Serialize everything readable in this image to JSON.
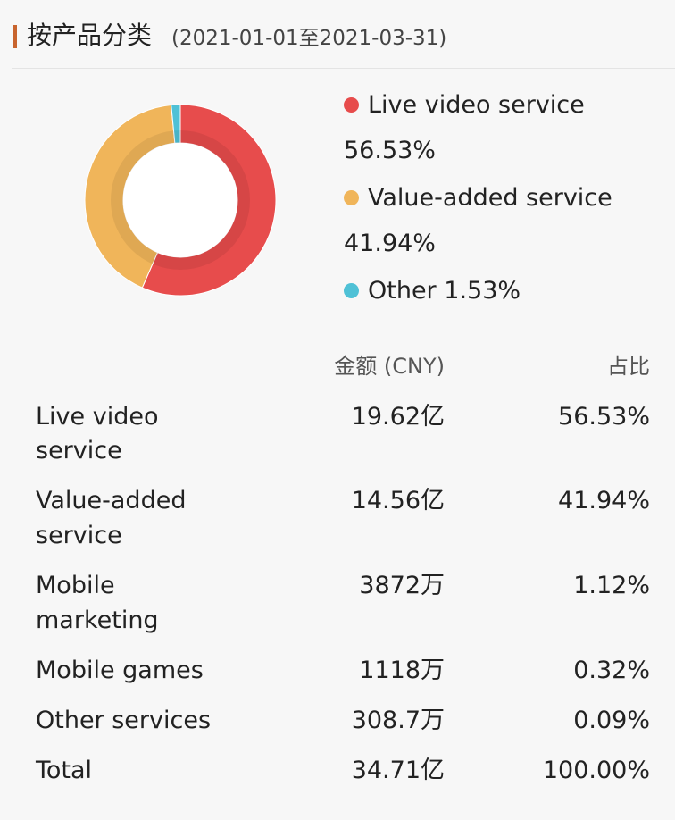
{
  "header": {
    "title": "按产品分类",
    "date_range": "(2021-01-01至2021-03-31)"
  },
  "colors": {
    "accent_bar": "#c8642e",
    "live_video": "#e74c4c",
    "value_added": "#f0b55a",
    "other": "#4fc1d6"
  },
  "chart_data": {
    "type": "pie",
    "subtype": "donut",
    "slices": [
      {
        "label": "Live video service",
        "value": 56.53,
        "display": "56.53%",
        "color": "#e74c4c"
      },
      {
        "label": "Value-added service",
        "value": 41.94,
        "display": "41.94%",
        "color": "#f0b55a"
      },
      {
        "label": "Other",
        "value": 1.53,
        "display": "1.53%",
        "color": "#4fc1d6"
      }
    ],
    "legend_placement": "right"
  },
  "table": {
    "headers": {
      "amount": "金额 (CNY)",
      "share": "占比"
    },
    "rows": [
      {
        "name_line1": "Live video",
        "name_line2": "service",
        "amount": "19.62亿",
        "share": "56.53%"
      },
      {
        "name_line1": "Value-added",
        "name_line2": "service",
        "amount": "14.56亿",
        "share": "41.94%"
      },
      {
        "name_line1": "Mobile",
        "name_line2": "marketing",
        "amount": "3872万",
        "share": "1.12%"
      },
      {
        "name_line1": "Mobile games",
        "name_line2": "",
        "amount": "1118万",
        "share": "0.32%"
      },
      {
        "name_line1": "Other services",
        "name_line2": "",
        "amount": "308.7万",
        "share": "0.09%"
      },
      {
        "name_line1": "Total",
        "name_line2": "",
        "amount": "34.71亿",
        "share": "100.00%"
      }
    ]
  }
}
